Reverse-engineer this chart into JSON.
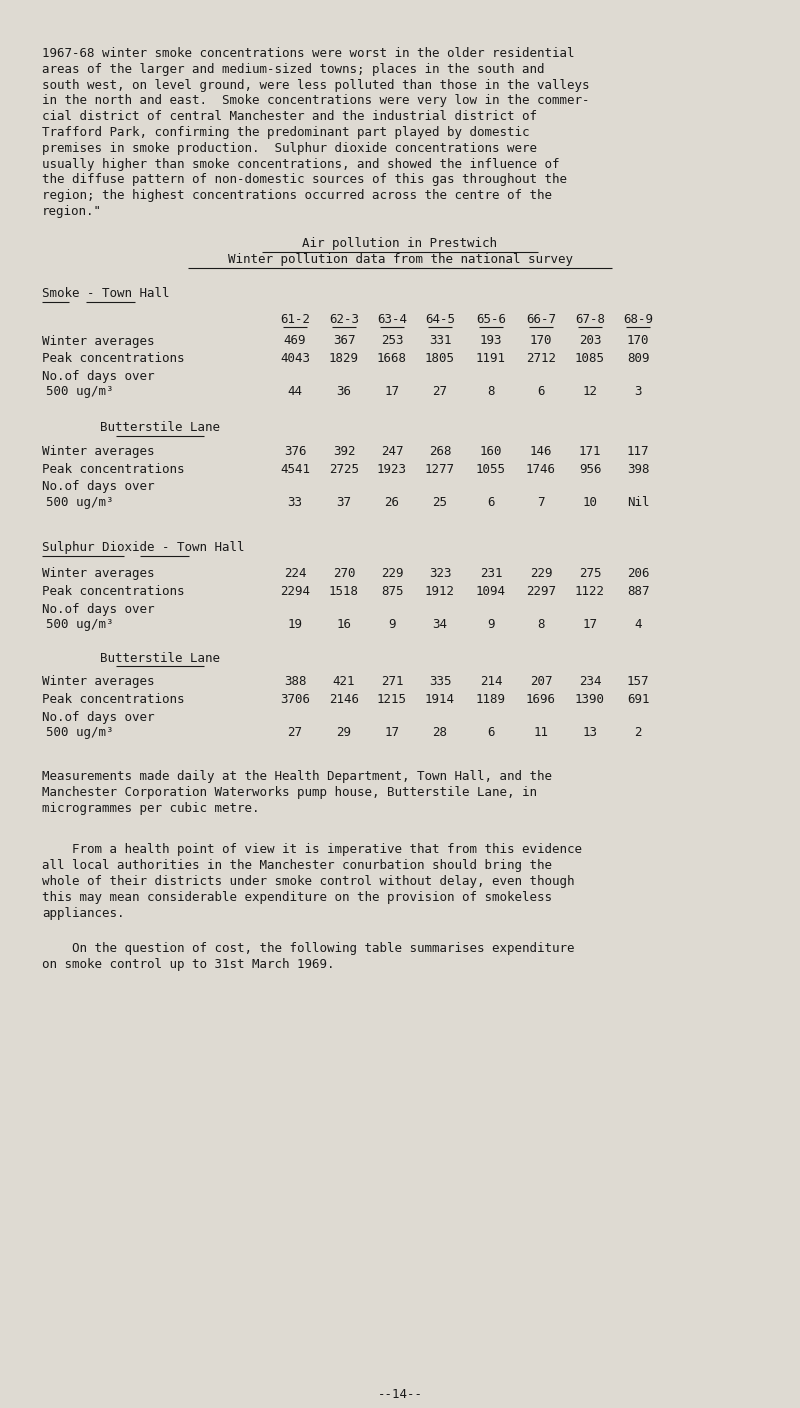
{
  "bg_color": "#dedad2",
  "text_color": "#1a1a1a",
  "font_family": "DejaVu Sans Mono",
  "page_width": 8.0,
  "page_height": 14.08,
  "dpi": 100,
  "intro_text": [
    "1967-68 winter smoke concentrations were worst in the older residential",
    "areas of the larger and medium-sized towns; places in the south and",
    "south west, on level ground, were less polluted than those in the valleys",
    "in the north and east.  Smoke concentrations were very low in the commer-",
    "cial district of central Manchester and the industrial district of",
    "Trafford Park, confirming the predominant part played by domestic",
    "premises in smoke production.  Sulphur dioxide concentrations were",
    "usually higher than smoke concentrations, and showed the influence of",
    "the diffuse pattern of non-domestic sources of this gas throughout the",
    "region; the highest concentrations occurred across the centre of the",
    "region.\""
  ],
  "title1": "Air pollution in Prestwich",
  "title2": "Winter pollution data from the national survey",
  "smoke_townhall_label": "Smoke - Town Hall",
  "butterstile_label1": "Butterstile Lane",
  "so2_townhall_label": "Sulphur Dioxide - Town Hall",
  "butterstile_label2": "Butterstile Lane",
  "col_headers": [
    "61-2",
    "62-3",
    "63-4",
    "64-5",
    "65-6",
    "66-7",
    "67-8",
    "68-9"
  ],
  "smoke_th_winter": [
    "469",
    "367",
    "253",
    "331",
    "193",
    "170",
    "203",
    "170"
  ],
  "smoke_th_peak": [
    "4043",
    "1829",
    "1668",
    "1805",
    "1191",
    "2712",
    "1085",
    "809"
  ],
  "smoke_th_days": [
    "44",
    "36",
    "17",
    "27",
    "8",
    "6",
    "12",
    "3"
  ],
  "smoke_bl_winter": [
    "376",
    "392",
    "247",
    "268",
    "160",
    "146",
    "171",
    "117"
  ],
  "smoke_bl_peak": [
    "4541",
    "2725",
    "1923",
    "1277",
    "1055",
    "1746",
    "956",
    "398"
  ],
  "smoke_bl_days": [
    "33",
    "37",
    "26",
    "25",
    "6",
    "7",
    "10",
    "Nil"
  ],
  "so2_th_winter": [
    "224",
    "270",
    "229",
    "323",
    "231",
    "229",
    "275",
    "206"
  ],
  "so2_th_peak": [
    "2294",
    "1518",
    "875",
    "1912",
    "1094",
    "2297",
    "1122",
    "887"
  ],
  "so2_th_days": [
    "19",
    "16",
    "9",
    "34",
    "9",
    "8",
    "17",
    "4"
  ],
  "so2_bl_winter": [
    "388",
    "421",
    "271",
    "335",
    "214",
    "207",
    "234",
    "157"
  ],
  "so2_bl_peak": [
    "3706",
    "2146",
    "1215",
    "1914",
    "1189",
    "1696",
    "1390",
    "691"
  ],
  "so2_bl_days": [
    "27",
    "29",
    "17",
    "28",
    "6",
    "11",
    "13",
    "2"
  ],
  "footnote_lines": [
    "Measurements made daily at the Health Department, Town Hall, and the",
    "Manchester Corporation Waterworks pump house, Butterstile Lane, in",
    "microgrammes per cubic metre."
  ],
  "para2_lines": [
    "    From a health point of view it is imperative that from this evidence",
    "all local authorities in the Manchester conurbation should bring the",
    "whole of their districts under smoke control without delay, even though",
    "this may mean considerable expenditure on the provision of smokeless",
    "appliances."
  ],
  "para3_lines": [
    "    On the question of cost, the following table summarises expenditure",
    "on smoke control up to 31st March 1969."
  ],
  "page_num": "--14--"
}
